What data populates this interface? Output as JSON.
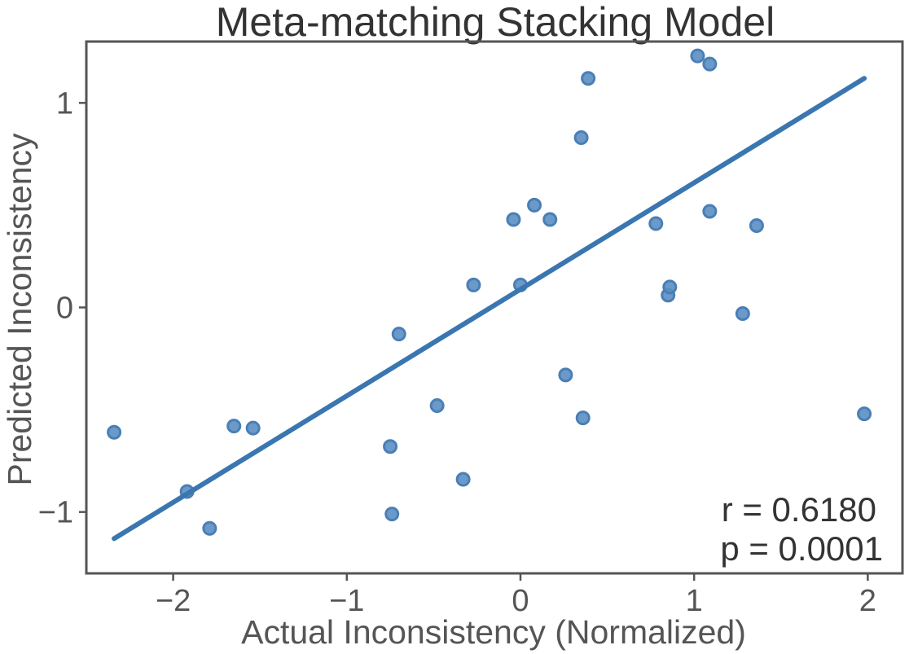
{
  "chart_data": {
    "type": "scatter",
    "title": "Meta-matching Stacking Model",
    "xlabel": "Actual Inconsistency (Normalized)",
    "ylabel": "Predicted Inconsistency",
    "xlim": [
      -2.5,
      2.2
    ],
    "ylim": [
      -1.3,
      1.3
    ],
    "x_ticks": [
      -2,
      -1,
      0,
      1,
      2
    ],
    "x_tick_labels": [
      "−2",
      "−1",
      "0",
      "1",
      "2"
    ],
    "y_ticks": [
      -1,
      0,
      1
    ],
    "y_tick_labels": [
      "−1",
      "0",
      "1"
    ],
    "grid": false,
    "points": [
      {
        "x": -2.34,
        "y": -0.61
      },
      {
        "x": -1.92,
        "y": -0.9
      },
      {
        "x": -1.79,
        "y": -1.08
      },
      {
        "x": -1.65,
        "y": -0.58
      },
      {
        "x": -1.54,
        "y": -0.59
      },
      {
        "x": -0.75,
        "y": -0.68
      },
      {
        "x": -0.74,
        "y": -1.01
      },
      {
        "x": -0.7,
        "y": -0.13
      },
      {
        "x": -0.48,
        "y": -0.48
      },
      {
        "x": -0.33,
        "y": -0.84
      },
      {
        "x": -0.27,
        "y": 0.11
      },
      {
        "x": -0.04,
        "y": 0.43
      },
      {
        "x": 0.0,
        "y": 0.11
      },
      {
        "x": 0.08,
        "y": 0.5
      },
      {
        "x": 0.17,
        "y": 0.43
      },
      {
        "x": 0.26,
        "y": -0.33
      },
      {
        "x": 0.35,
        "y": 0.83
      },
      {
        "x": 0.36,
        "y": -0.54
      },
      {
        "x": 0.39,
        "y": 1.12
      },
      {
        "x": 0.78,
        "y": 0.41
      },
      {
        "x": 0.85,
        "y": 0.06
      },
      {
        "x": 0.86,
        "y": 0.1
      },
      {
        "x": 1.02,
        "y": 1.23
      },
      {
        "x": 1.09,
        "y": 1.19
      },
      {
        "x": 1.09,
        "y": 0.47
      },
      {
        "x": 1.28,
        "y": -0.03
      },
      {
        "x": 1.36,
        "y": 0.4
      },
      {
        "x": 1.98,
        "y": -0.52
      }
    ],
    "fit_line": {
      "x": [
        -2.34,
        1.98
      ],
      "y": [
        -1.13,
        1.12
      ]
    },
    "annotations": [
      "r = 0.6180",
      "p = 0.0001"
    ],
    "colors": {
      "points": "#5b8fc4",
      "fit_line": "#3a76b0"
    }
  }
}
